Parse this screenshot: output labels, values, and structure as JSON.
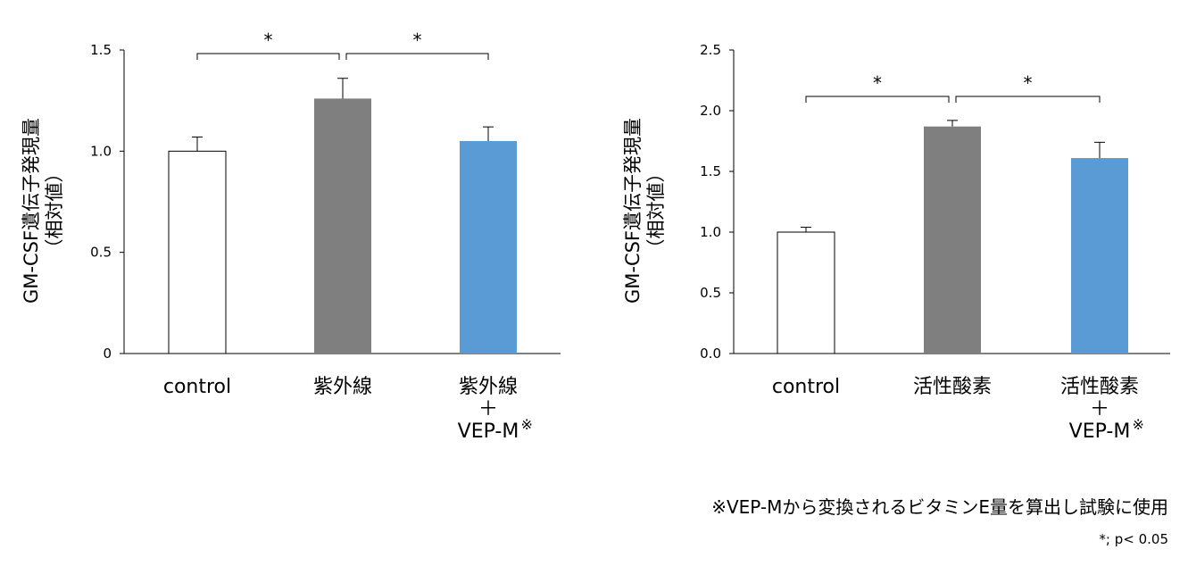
{
  "chart_data": [
    {
      "type": "bar",
      "ylabel": "GM-CSF遺伝子発現量",
      "ylabel_sub": "（相対値）",
      "ylim": [
        0,
        1.5
      ],
      "yticks": [
        "0",
        "0.5",
        "1.0",
        "1.5"
      ],
      "ytick_values": [
        0,
        0.5,
        1.0,
        1.5
      ],
      "grid": false,
      "categories": [
        {
          "lines": [
            "control"
          ],
          "sup": ""
        },
        {
          "lines": [
            "紫外線"
          ],
          "sup": ""
        },
        {
          "lines": [
            "紫外線",
            "＋",
            "VEP-M"
          ],
          "sup": "※"
        }
      ],
      "values": [
        1.0,
        1.26,
        1.05
      ],
      "errors": [
        0.07,
        0.1,
        0.07
      ],
      "colors": [
        "#ffffff",
        "#7f7f7f",
        "#5b9bd5"
      ],
      "significance": [
        {
          "from": 0,
          "to": 1,
          "label": "*"
        },
        {
          "from": 1,
          "to": 2,
          "label": "*"
        }
      ]
    },
    {
      "type": "bar",
      "ylabel": "GM-CSF遺伝子発現量",
      "ylabel_sub": "（相対値）",
      "ylim": [
        0,
        2.5
      ],
      "yticks": [
        "0.0",
        "0.5",
        "1.0",
        "1.5",
        "2.0",
        "2.5"
      ],
      "ytick_values": [
        0,
        0.5,
        1.0,
        1.5,
        2.0,
        2.5
      ],
      "grid": false,
      "categories": [
        {
          "lines": [
            "control"
          ],
          "sup": ""
        },
        {
          "lines": [
            "活性酸素"
          ],
          "sup": ""
        },
        {
          "lines": [
            "活性酸素",
            "＋",
            "VEP-M"
          ],
          "sup": "※"
        }
      ],
      "values": [
        1.0,
        1.87,
        1.61
      ],
      "errors": [
        0.04,
        0.05,
        0.13
      ],
      "colors": [
        "#ffffff",
        "#7f7f7f",
        "#5b9bd5"
      ],
      "significance": [
        {
          "from": 0,
          "to": 1,
          "label": "*"
        },
        {
          "from": 1,
          "to": 2,
          "label": "*"
        }
      ]
    }
  ],
  "footnotes": {
    "note": "※VEP-Mから変換されるビタミンE量を算出し試験に使用",
    "significance": "*; p< 0.05"
  }
}
